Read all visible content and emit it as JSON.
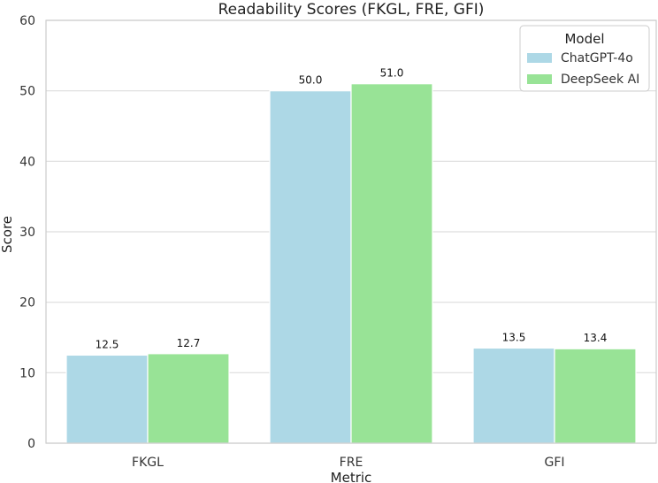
{
  "chart_data": {
    "type": "bar",
    "title": "Readability Scores (FKGL, FRE, GFI)",
    "xlabel": "Metric",
    "ylabel": "Score",
    "categories": [
      "FKGL",
      "FRE",
      "GFI"
    ],
    "series": [
      {
        "name": "ChatGPT-4o",
        "values": [
          12.5,
          50.0,
          13.5
        ],
        "labels": [
          "12.5",
          "50.0",
          "13.5"
        ],
        "color": "#add8e6"
      },
      {
        "name": "DeepSeek AI",
        "values": [
          12.7,
          51.0,
          13.4
        ],
        "labels": [
          "12.7",
          "51.0",
          "13.4"
        ],
        "color": "#98e396"
      }
    ],
    "ylim": [
      0,
      60
    ],
    "yticks": [
      0,
      10,
      20,
      30,
      40,
      50,
      60
    ],
    "ytick_labels": [
      "0",
      "10",
      "20",
      "30",
      "40",
      "50",
      "60"
    ],
    "grid": "horizontal",
    "legend": {
      "title": "Model",
      "placement": "top-right"
    }
  }
}
